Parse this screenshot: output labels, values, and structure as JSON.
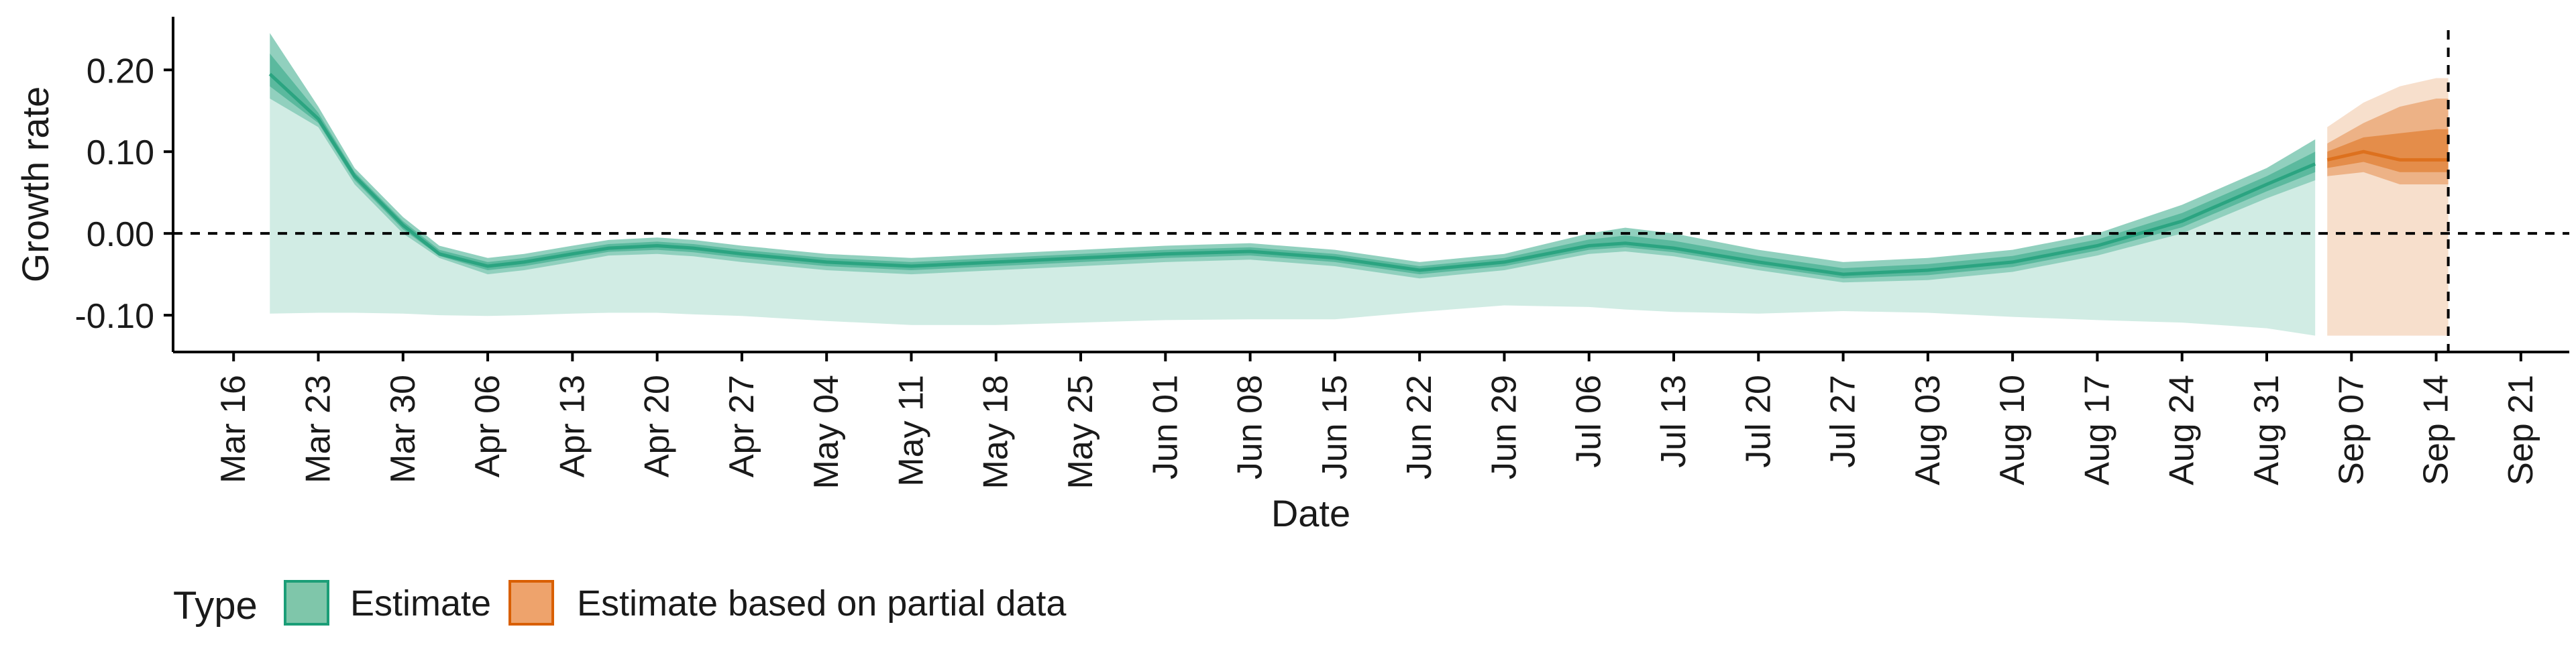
{
  "chart_data": {
    "type": "area",
    "title": "",
    "xlabel": "Date",
    "ylabel": "Growth rate",
    "ylim": [
      -0.145,
      0.265
    ],
    "xlim": [
      "2020-03-11",
      "2020-09-25"
    ],
    "y_ticks": [
      0.2,
      0.1,
      0.0,
      -0.1
    ],
    "y_tick_labels": [
      "0.20",
      "0.10",
      "0.00",
      "-0.10"
    ],
    "x_ticks": [
      "2020-03-16",
      "2020-03-23",
      "2020-03-30",
      "2020-04-06",
      "2020-04-13",
      "2020-04-20",
      "2020-04-27",
      "2020-05-04",
      "2020-05-11",
      "2020-05-18",
      "2020-05-25",
      "2020-06-01",
      "2020-06-08",
      "2020-06-15",
      "2020-06-22",
      "2020-06-29",
      "2020-07-06",
      "2020-07-13",
      "2020-07-20",
      "2020-07-27",
      "2020-08-03",
      "2020-08-10",
      "2020-08-17",
      "2020-08-24",
      "2020-08-31",
      "2020-09-07",
      "2020-09-14",
      "2020-09-21"
    ],
    "x_tick_labels": [
      "Mar 16",
      "Mar 23",
      "Mar 30",
      "Apr 06",
      "Apr 13",
      "Apr 20",
      "Apr 27",
      "May 04",
      "May 11",
      "May 18",
      "May 25",
      "Jun 01",
      "Jun 08",
      "Jun 15",
      "Jun 22",
      "Jun 29",
      "Jul 06",
      "Jul 13",
      "Jul 20",
      "Jul 27",
      "Aug 03",
      "Aug 10",
      "Aug 17",
      "Aug 24",
      "Aug 31",
      "Sep 07",
      "Sep 14",
      "Sep 21"
    ],
    "hline_y": 0.0,
    "vline_x": "2020-09-15",
    "grid": false,
    "legend": {
      "title": "Type",
      "position": "bottom",
      "entries": [
        {
          "label": "Estimate",
          "fill": "#7fc6aa",
          "stroke": "#1b9e77"
        },
        {
          "label": "Estimate based on partial data",
          "fill": "#eea36c",
          "stroke": "#d95f02"
        }
      ]
    },
    "series": [
      {
        "name": "Estimate",
        "color": "#1b9e77",
        "x": [
          "2020-03-19",
          "2020-03-23",
          "2020-03-26",
          "2020-03-30",
          "2020-04-02",
          "2020-04-06",
          "2020-04-09",
          "2020-04-13",
          "2020-04-16",
          "2020-04-20",
          "2020-04-23",
          "2020-04-27",
          "2020-05-04",
          "2020-05-11",
          "2020-05-18",
          "2020-05-25",
          "2020-06-01",
          "2020-06-08",
          "2020-06-15",
          "2020-06-22",
          "2020-06-29",
          "2020-07-06",
          "2020-07-09",
          "2020-07-13",
          "2020-07-20",
          "2020-07-27",
          "2020-08-03",
          "2020-08-10",
          "2020-08-17",
          "2020-08-24",
          "2020-08-31",
          "2020-09-04"
        ],
        "median": [
          0.195,
          0.14,
          0.07,
          0.01,
          -0.025,
          -0.04,
          -0.035,
          -0.025,
          -0.018,
          -0.015,
          -0.018,
          -0.025,
          -0.035,
          -0.04,
          -0.035,
          -0.03,
          -0.025,
          -0.022,
          -0.03,
          -0.045,
          -0.035,
          -0.015,
          -0.012,
          -0.018,
          -0.035,
          -0.05,
          -0.045,
          -0.035,
          -0.015,
          0.015,
          0.06,
          0.085
        ],
        "lower_90": [
          0.165,
          0.13,
          0.06,
          0.0,
          -0.03,
          -0.05,
          -0.045,
          -0.035,
          -0.027,
          -0.025,
          -0.028,
          -0.035,
          -0.045,
          -0.05,
          -0.045,
          -0.04,
          -0.035,
          -0.032,
          -0.04,
          -0.055,
          -0.045,
          -0.025,
          -0.022,
          -0.028,
          -0.045,
          -0.06,
          -0.057,
          -0.047,
          -0.027,
          0.0,
          0.043,
          0.065
        ],
        "upper_90": [
          0.245,
          0.155,
          0.08,
          0.02,
          -0.015,
          -0.03,
          -0.025,
          -0.015,
          -0.008,
          -0.005,
          -0.008,
          -0.015,
          -0.025,
          -0.03,
          -0.025,
          -0.02,
          -0.015,
          -0.012,
          -0.02,
          -0.035,
          -0.025,
          0.0,
          0.007,
          0.0,
          -0.02,
          -0.035,
          -0.03,
          -0.02,
          0.0,
          0.035,
          0.08,
          0.115
        ],
        "lower_wide": [
          -0.098,
          -0.097,
          -0.097,
          -0.098,
          -0.1,
          -0.101,
          -0.1,
          -0.098,
          -0.097,
          -0.097,
          -0.099,
          -0.101,
          -0.107,
          -0.112,
          -0.112,
          -0.109,
          -0.106,
          -0.105,
          -0.105,
          -0.096,
          -0.088,
          -0.09,
          -0.093,
          -0.096,
          -0.098,
          -0.095,
          -0.097,
          -0.102,
          -0.106,
          -0.109,
          -0.116,
          -0.125
        ]
      },
      {
        "name": "Estimate based on partial data",
        "color": "#d95f02",
        "x": [
          "2020-09-05",
          "2020-09-08",
          "2020-09-11",
          "2020-09-14",
          "2020-09-15"
        ],
        "median": [
          0.09,
          0.1,
          0.09,
          0.09,
          0.09
        ],
        "lower_90": [
          0.07,
          0.075,
          0.06,
          0.06,
          0.06
        ],
        "upper_90": [
          0.11,
          0.135,
          0.155,
          0.165,
          0.165
        ],
        "lower_wide": [
          -0.125,
          -0.125,
          -0.125,
          -0.125,
          -0.125
        ],
        "upper_wide": [
          0.13,
          0.16,
          0.18,
          0.19,
          0.19
        ]
      }
    ]
  }
}
